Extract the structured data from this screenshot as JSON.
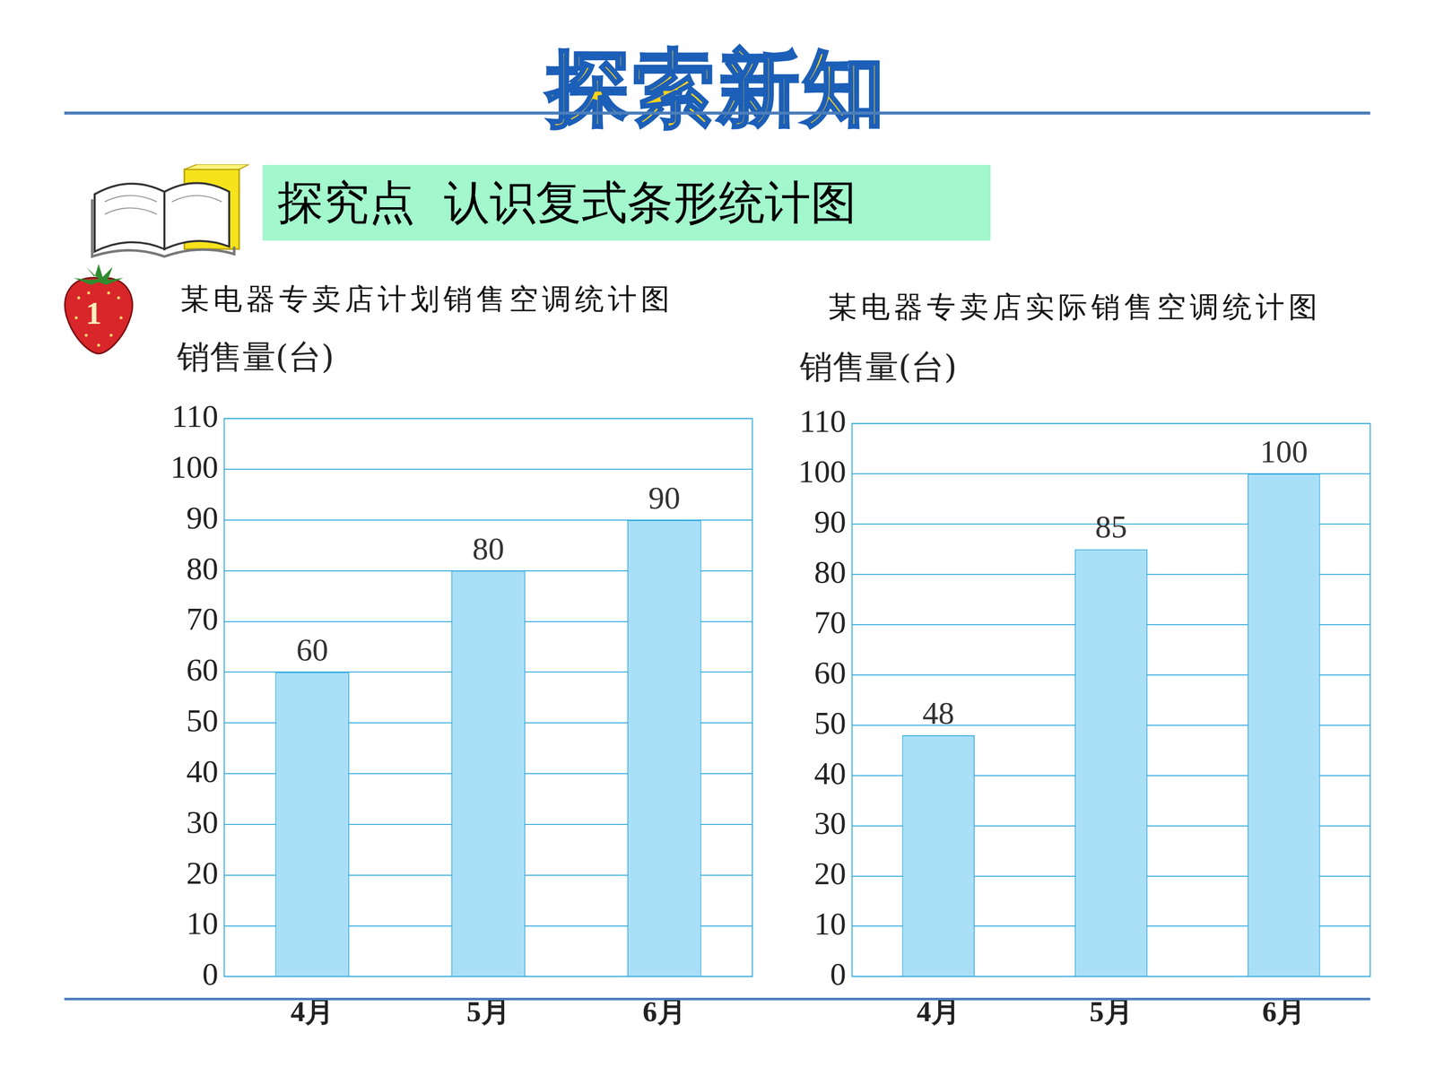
{
  "header": {
    "title": "探索新知",
    "topic": "探究点  认识复式条形统计图",
    "example_number": "1"
  },
  "chart_data": [
    {
      "type": "bar",
      "title": "某电器专卖店计划销售空调统计图",
      "y_label": "销售量(台)",
      "categories": [
        "4月",
        "5月",
        "6月"
      ],
      "values": [
        60,
        80,
        90
      ],
      "color": "#aadff8",
      "ylim": [
        0,
        110
      ],
      "yticks": [
        0,
        10,
        20,
        30,
        40,
        50,
        60,
        70,
        80,
        90,
        100,
        110
      ],
      "grid": true,
      "data_labels": true
    },
    {
      "type": "bar",
      "title": "某电器专卖店实际销售空调统计图",
      "y_label": "销售量(台)",
      "categories": [
        "4月",
        "5月",
        "6月"
      ],
      "values": [
        48,
        85,
        100
      ],
      "color": "#aadff8",
      "ylim": [
        0,
        110
      ],
      "yticks": [
        0,
        10,
        20,
        30,
        40,
        50,
        60,
        70,
        80,
        90,
        100,
        110
      ],
      "grid": true,
      "data_labels": true
    }
  ]
}
